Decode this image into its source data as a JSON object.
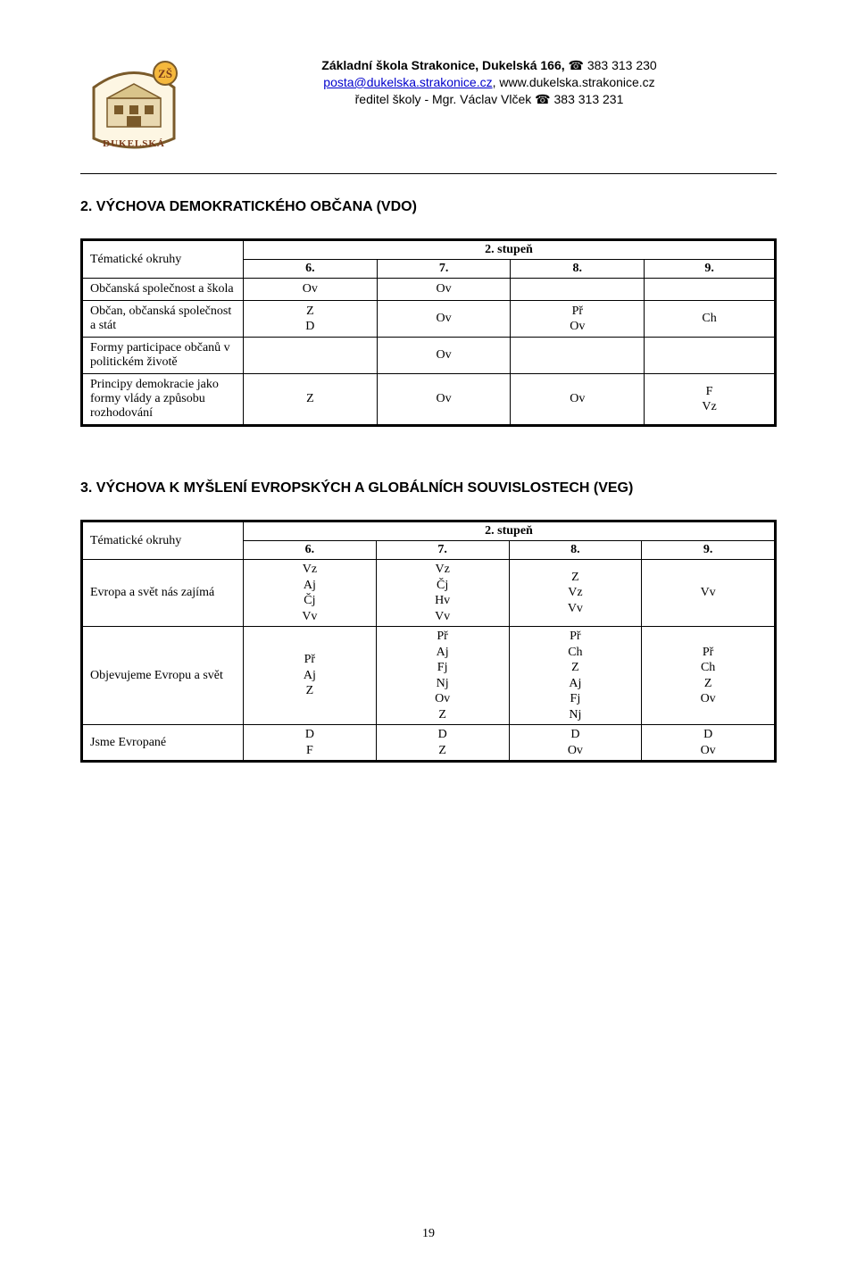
{
  "header": {
    "school_name_bold": "Základní škola Strakonice, Dukelská 166,",
    "phone1_icon": "☎",
    "phone1": "383 313 230",
    "email": "posta@dukelska.strakonice.cz",
    "website": ", www.dukelska.strakonice.cz",
    "director_line": "ředitel školy - Mgr. Václav Vlček",
    "phone2_icon": "☎",
    "phone2": "383 313 231"
  },
  "section2": {
    "title": "2. VÝCHOVA DEMOKRATICKÉHO OBČANA  (VDO)",
    "table": {
      "corner": "Tématické okruhy",
      "level_header": "2. stupeň",
      "cols": [
        "6.",
        "7.",
        "8.",
        "9."
      ],
      "rows": [
        {
          "label": "Občanská společnost a škola",
          "cells": [
            "Ov",
            "Ov",
            "",
            ""
          ]
        },
        {
          "label": "Občan, občanská společnost a stát",
          "cells": [
            "Z\nD",
            "Ov",
            "Př\nOv",
            "Ch"
          ]
        },
        {
          "label": "Formy participace občanů v politickém životě",
          "cells": [
            "",
            "Ov",
            "",
            ""
          ]
        },
        {
          "label": "Principy demokracie jako formy vlády a způsobu rozhodování",
          "cells": [
            "Z",
            "Ov",
            "Ov",
            "F\nVz"
          ]
        }
      ]
    }
  },
  "section3": {
    "title": "3. VÝCHOVA K MYŠLENÍ EVROPSKÝCH A GLOBÁLNÍCH SOUVISLOSTECH  (VEG)",
    "table": {
      "corner": "Tématické okruhy",
      "level_header": "2. stupeň",
      "cols": [
        "6.",
        "7.",
        "8.",
        "9."
      ],
      "rows": [
        {
          "label": "Evropa a svět nás zajímá",
          "cells": [
            "Vz\nAj\nČj\nVv",
            "Vz\nČj\nHv\nVv",
            "Z\nVz\nVv",
            "Vv"
          ]
        },
        {
          "label": "Objevujeme Evropu a svět",
          "cells": [
            "Př\nAj\nZ",
            "Př\nAj\nFj\nNj\nOv\nZ",
            "Př\nCh\nZ\nAj\nFj\nNj",
            "Př\nCh\nZ\nOv"
          ]
        },
        {
          "label": "Jsme Evropané",
          "cells": [
            "D\nF",
            "D\nZ",
            "D\nOv",
            "D\nOv"
          ]
        }
      ]
    }
  },
  "page_number": "19"
}
